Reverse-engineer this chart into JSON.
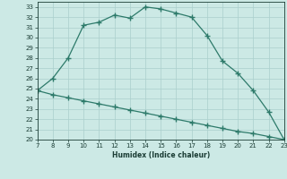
{
  "xlabel": "Humidex (Indice chaleur)",
  "x_upper": [
    7,
    8,
    9,
    10,
    11,
    12,
    13,
    14,
    15,
    16,
    17,
    18,
    19,
    20,
    21,
    22,
    23
  ],
  "y_upper": [
    24.8,
    26.0,
    28.0,
    31.2,
    31.5,
    32.2,
    31.9,
    33.0,
    32.8,
    32.4,
    32.0,
    30.2,
    27.7,
    26.5,
    24.8,
    22.7,
    20.0
  ],
  "x_lower": [
    7,
    8,
    9,
    10,
    11,
    12,
    13,
    14,
    15,
    16,
    17,
    18,
    19,
    20,
    21,
    22,
    23
  ],
  "y_lower": [
    24.8,
    24.4,
    24.1,
    23.8,
    23.5,
    23.2,
    22.9,
    22.6,
    22.3,
    22.0,
    21.7,
    21.4,
    21.1,
    20.8,
    20.6,
    20.3,
    20.0
  ],
  "line_color": "#2d7a6a",
  "bg_color": "#cce9e5",
  "grid_color": "#aacfcc",
  "text_color": "#1a3c34",
  "ylim": [
    20,
    33.5
  ],
  "xlim": [
    7,
    23
  ],
  "yticks": [
    20,
    21,
    22,
    23,
    24,
    25,
    26,
    27,
    28,
    29,
    30,
    31,
    32,
    33
  ],
  "xticks": [
    7,
    8,
    9,
    10,
    11,
    12,
    13,
    14,
    15,
    16,
    17,
    18,
    19,
    20,
    21,
    22,
    23
  ]
}
